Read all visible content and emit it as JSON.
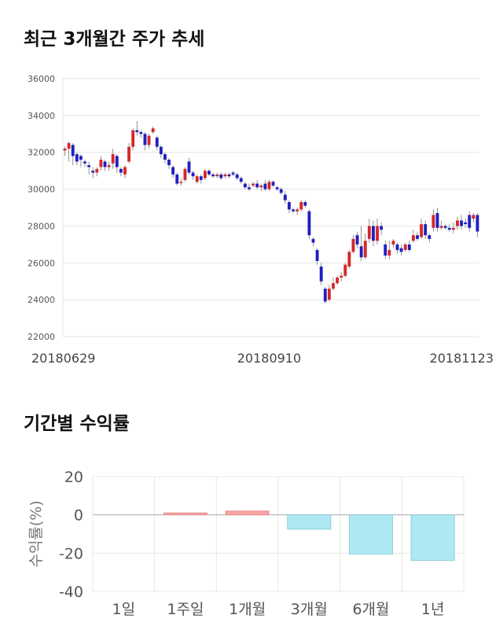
{
  "sections": {
    "price_title": "최근 3개월간 주가 추세",
    "returns_title": "기간별 수익률"
  },
  "colors": {
    "up": "#d62728",
    "down": "#1f1fc2",
    "positive_bar": "#f5a3a3",
    "negative_bar": "#aee9f3"
  },
  "chart_data": [
    {
      "type": "candlestick",
      "title": "최근 3개월간 주가 추세",
      "ylim": [
        22000,
        36000
      ],
      "yticks": [
        22000,
        24000,
        26000,
        28000,
        30000,
        32000,
        34000,
        36000
      ],
      "xtick_labels": [
        {
          "index": 0,
          "label": "20180629"
        },
        {
          "index": 51,
          "label": "20180910"
        },
        {
          "index": 103,
          "label": "20181123"
        }
      ],
      "grid": true,
      "candles": [
        [
          32100,
          32200,
          31800,
          32300
        ],
        [
          32200,
          32500,
          31500,
          32600
        ],
        [
          32400,
          31800,
          31300,
          32500
        ],
        [
          31900,
          31500,
          31300,
          32000
        ],
        [
          31800,
          31600,
          31200,
          31900
        ],
        [
          31500,
          31400,
          31200,
          31600
        ],
        [
          31300,
          31200,
          30800,
          31500
        ],
        [
          31000,
          30900,
          30600,
          31200
        ],
        [
          30900,
          31100,
          30700,
          31200
        ],
        [
          31200,
          31600,
          31000,
          31800
        ],
        [
          31500,
          31200,
          31000,
          31600
        ],
        [
          31200,
          31300,
          31000,
          31500
        ],
        [
          31400,
          31900,
          31100,
          32200
        ],
        [
          31800,
          31200,
          30900,
          31900
        ],
        [
          31100,
          30900,
          30700,
          31200
        ],
        [
          30800,
          31200,
          30600,
          31300
        ],
        [
          31500,
          32300,
          31400,
          32500
        ],
        [
          32300,
          33200,
          32100,
          33300
        ],
        [
          33200,
          33100,
          32900,
          33700
        ],
        [
          33100,
          33000,
          32800,
          33200
        ],
        [
          33000,
          32400,
          32100,
          33100
        ],
        [
          32400,
          32900,
          32200,
          33000
        ],
        [
          33100,
          33300,
          33000,
          33400
        ],
        [
          32800,
          32300,
          32100,
          32900
        ],
        [
          32300,
          31900,
          31700,
          32400
        ],
        [
          31900,
          31600,
          31400,
          32000
        ],
        [
          31600,
          31300,
          31100,
          31700
        ],
        [
          31200,
          30800,
          30600,
          31300
        ],
        [
          30800,
          30300,
          30200,
          30900
        ],
        [
          30400,
          30400,
          30200,
          30600
        ],
        [
          30500,
          31100,
          30400,
          31200
        ],
        [
          31500,
          30900,
          30800,
          31700
        ],
        [
          30900,
          30700,
          30500,
          31000
        ],
        [
          30400,
          30700,
          30300,
          30800
        ],
        [
          30700,
          30500,
          30300,
          30800
        ],
        [
          30600,
          31000,
          30500,
          31100
        ],
        [
          31000,
          30800,
          30700,
          31100
        ],
        [
          30800,
          30700,
          30600,
          30900
        ],
        [
          30700,
          30800,
          30600,
          30900
        ],
        [
          30800,
          30600,
          30500,
          30900
        ],
        [
          30700,
          30800,
          30600,
          30900
        ],
        [
          30800,
          30700,
          30600,
          30900
        ],
        [
          30900,
          30800,
          30700,
          31000
        ],
        [
          30800,
          30600,
          30500,
          30900
        ],
        [
          30600,
          30400,
          30300,
          30700
        ],
        [
          30300,
          30100,
          30000,
          30400
        ],
        [
          30100,
          30000,
          29900,
          30300
        ],
        [
          30200,
          30300,
          30100,
          30400
        ],
        [
          30300,
          30100,
          30000,
          30500
        ],
        [
          30100,
          30200,
          29900,
          30300
        ],
        [
          30300,
          30000,
          29900,
          30500
        ],
        [
          30000,
          30400,
          29900,
          30500
        ],
        [
          30400,
          30200,
          30100,
          30500
        ],
        [
          30100,
          30000,
          29900,
          30200
        ],
        [
          30000,
          29800,
          29700,
          30100
        ],
        [
          29700,
          29400,
          29200,
          29900
        ],
        [
          29300,
          28900,
          28700,
          29400
        ],
        [
          28900,
          28800,
          28700,
          29000
        ],
        [
          28800,
          28900,
          28600,
          29000
        ],
        [
          28900,
          29300,
          28800,
          29400
        ],
        [
          29300,
          29100,
          29000,
          29400
        ],
        [
          28800,
          27500,
          27300,
          28900
        ],
        [
          27300,
          27100,
          26900,
          27400
        ],
        [
          26700,
          26100,
          25900,
          26800
        ],
        [
          25800,
          25000,
          24800,
          26000
        ],
        [
          24600,
          23900,
          23800,
          24700
        ],
        [
          24000,
          24600,
          23900,
          24800
        ],
        [
          24600,
          24900,
          24500,
          25200
        ],
        [
          24900,
          25200,
          24800,
          25300
        ],
        [
          25200,
          25300,
          25000,
          25500
        ],
        [
          25300,
          25900,
          25200,
          26000
        ],
        [
          25800,
          26600,
          25700,
          26700
        ],
        [
          26600,
          27300,
          26500,
          27500
        ],
        [
          27500,
          27000,
          26800,
          27700
        ],
        [
          26900,
          26300,
          26100,
          28000
        ],
        [
          26300,
          27200,
          26200,
          27600
        ],
        [
          27300,
          28000,
          27100,
          28400
        ],
        [
          28000,
          27200,
          26900,
          28300
        ],
        [
          27200,
          28000,
          27000,
          28400
        ],
        [
          28000,
          27800,
          27500,
          28200
        ],
        [
          27000,
          26400,
          26200,
          27200
        ],
        [
          26400,
          26700,
          26200,
          27200
        ],
        [
          27000,
          27200,
          26800,
          27300
        ],
        [
          27000,
          26700,
          26500,
          27100
        ],
        [
          26800,
          26600,
          26400,
          27000
        ],
        [
          26700,
          27000,
          26600,
          27100
        ],
        [
          27000,
          26700,
          26600,
          27200
        ],
        [
          27200,
          27500,
          27100,
          27800
        ],
        [
          27500,
          27300,
          27200,
          27700
        ],
        [
          27400,
          28100,
          27300,
          28400
        ],
        [
          28100,
          27500,
          27300,
          28300
        ],
        [
          27500,
          27300,
          27100,
          27600
        ],
        [
          27900,
          28600,
          27700,
          28900
        ],
        [
          28700,
          27900,
          27700,
          29000
        ],
        [
          27900,
          28000,
          27800,
          28300
        ],
        [
          28000,
          27900,
          27800,
          28100
        ],
        [
          27900,
          27800,
          27700,
          28100
        ],
        [
          27800,
          27900,
          27600,
          28200
        ],
        [
          28000,
          28300,
          27800,
          28500
        ],
        [
          28300,
          28000,
          27800,
          28600
        ],
        [
          28200,
          28100,
          27900,
          28400
        ],
        [
          28600,
          27900,
          27700,
          28800
        ],
        [
          28400,
          28600,
          28200,
          28700
        ],
        [
          28600,
          27700,
          27400,
          28700
        ]
      ]
    },
    {
      "type": "bar",
      "ylabel": "수익률(%)",
      "ylim": [
        -40,
        20
      ],
      "yticks": [
        20,
        0,
        -20,
        -40
      ],
      "categories": [
        "1일",
        "1주일",
        "1개월",
        "3개월",
        "6개월",
        "1년"
      ],
      "values": [
        0.0,
        1.0,
        2.0,
        -7.5,
        -20.5,
        -23.8
      ],
      "grid": true
    }
  ]
}
